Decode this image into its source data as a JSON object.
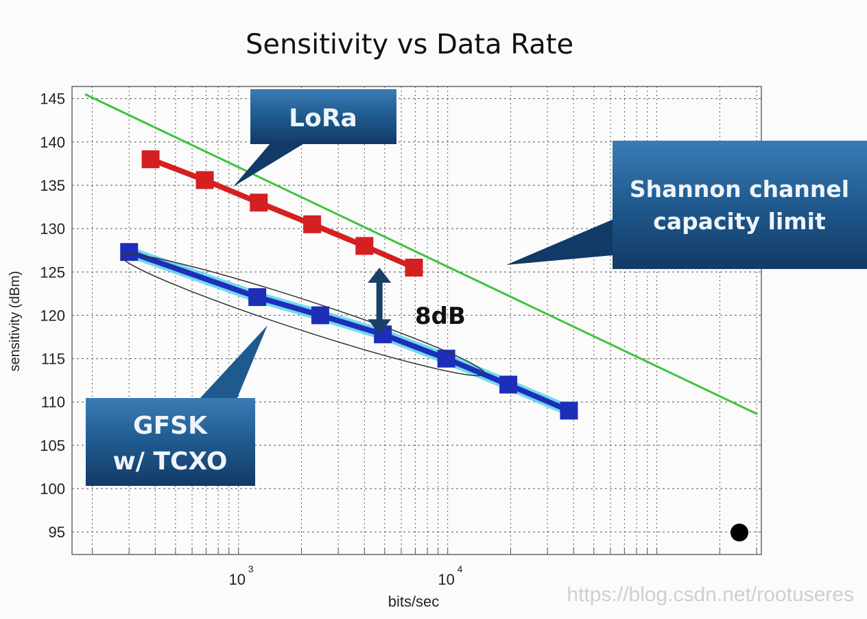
{
  "chart_data": {
    "type": "line",
    "title": "Sensitivity vs Data Rate",
    "xlabel": "bits/sec",
    "ylabel": "sensitivity (dBm)",
    "xscale": "log",
    "xlim": [
      160,
      316000
    ],
    "ylim": [
      92.4,
      146.4
    ],
    "grid": true,
    "yticks": [
      95,
      100,
      105,
      110,
      115,
      120,
      125,
      130,
      135,
      140,
      145
    ],
    "xticks": [
      {
        "value": 1000,
        "base": "10",
        "exp": "3"
      },
      {
        "value": 10000,
        "base": "10",
        "exp": "4"
      }
    ],
    "series": [
      {
        "name": "LoRa",
        "color": "#d42020",
        "marker": "square",
        "x": [
          380,
          690,
          1250,
          2250,
          4000,
          6900
        ],
        "y": [
          138,
          135.6,
          133,
          130.5,
          128,
          125.5
        ]
      },
      {
        "name": "GFSK w/ TCXO",
        "color": "#1d2fb8",
        "highlight": "#4fd2ee",
        "marker": "square",
        "x": [
          300,
          1230,
          2460,
          4900,
          9850,
          19500,
          38000
        ],
        "y": [
          127.3,
          122.1,
          120,
          117.8,
          115,
          112,
          109
        ]
      },
      {
        "name": "Shannon channel capacity limit",
        "color": "#3cc43c",
        "marker": "none",
        "x": [
          185,
          302000
        ],
        "y": [
          145.5,
          108.6
        ]
      }
    ],
    "annotations": {
      "lora_callout": "LoRa",
      "shannon_callout_line1": "Shannon channel",
      "shannon_callout_line2": "capacity limit",
      "gfsk_callout_line1": "GFSK",
      "gfsk_callout_line2": "w/ TCXO",
      "gap_label": "8dB",
      "gap_arrow": {
        "x": 4900,
        "y_from": 125.5,
        "y_to": 117.8
      }
    },
    "colors": {
      "callout": "#1f5a8e",
      "callout_dark": "#123a66",
      "arrow": "#1b3f66"
    }
  },
  "watermark": "https://blog.csdn.net/rootuseres"
}
